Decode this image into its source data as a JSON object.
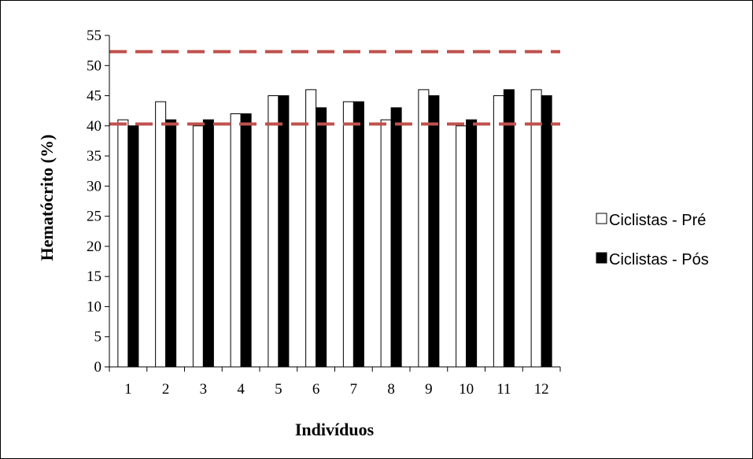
{
  "chart_data": {
    "type": "bar",
    "title": "",
    "xlabel": "Indivíduos",
    "ylabel": "Hematócrito (%)",
    "categories": [
      "1",
      "2",
      "3",
      "4",
      "5",
      "6",
      "7",
      "8",
      "9",
      "10",
      "11",
      "12"
    ],
    "series": [
      {
        "name": "Ciclistas - Pré",
        "color": "#ffffff",
        "values": [
          41,
          44,
          40,
          42,
          45,
          46,
          44,
          41,
          46,
          40,
          45,
          46
        ]
      },
      {
        "name": "Ciclistas - Pós",
        "color": "#000000",
        "values": [
          40,
          41,
          41,
          42,
          45,
          43,
          44,
          43,
          45,
          41,
          46,
          45
        ]
      }
    ],
    "ylim": [
      0,
      55
    ],
    "yticks": [
      "0",
      "5",
      "10",
      "15",
      "20",
      "25",
      "30",
      "35",
      "40",
      "45",
      "50",
      "55"
    ],
    "reference_lines": [
      52.3,
      40.3
    ],
    "reference_line_color": "#c0504d",
    "grid": false,
    "legend_position": "right"
  }
}
